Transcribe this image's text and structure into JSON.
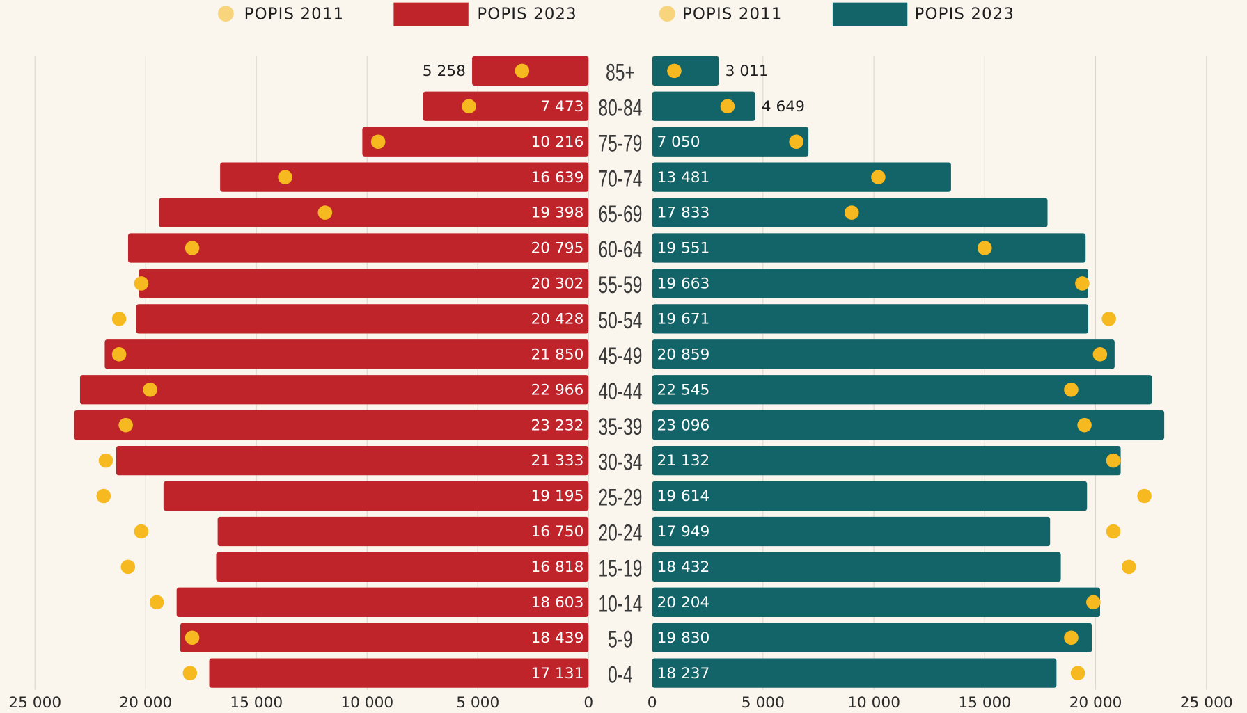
{
  "chart_data": [
    {
      "type": "pyramid",
      "categories": [
        "85+",
        "80-84",
        "75-79",
        "70-74",
        "65-69",
        "60-64",
        "55-59",
        "50-54",
        "45-49",
        "40-44",
        "35-39",
        "30-34",
        "25-29",
        "20-24",
        "15-19",
        "10-14",
        "5-9",
        "0-4"
      ],
      "xlim": [
        25000,
        0
      ],
      "xticks": [
        {
          "value": 25000,
          "label": "25 000"
        },
        {
          "value": 20000,
          "label": "20 000"
        },
        {
          "value": 15000,
          "label": "15 000"
        },
        {
          "value": 10000,
          "label": "10 000"
        },
        {
          "value": 5000,
          "label": "5 000"
        },
        0
      ],
      "grid": true,
      "series": [
        {
          "name": "POPIS 2011",
          "color": "#f6b91f",
          "mark": "dot",
          "values": [
            3000,
            5400,
            9500,
            13700,
            11900,
            17900,
            20200,
            21200,
            21200,
            19800,
            20900,
            21800,
            21900,
            20200,
            20800,
            19500,
            17900,
            18000
          ]
        },
        {
          "name": "POPIS 2023",
          "color": "#c0242b",
          "mark": "bar",
          "values": [
            5258,
            7473,
            10216,
            16639,
            19398,
            20795,
            20302,
            20428,
            21850,
            22966,
            23232,
            21333,
            19195,
            16750,
            16818,
            18603,
            18439,
            17131
          ],
          "value_labels": [
            "5 258",
            "7 473",
            "10 216",
            "16 639",
            "19 398",
            "20 795",
            "20 302",
            "20 428",
            "21 850",
            "22 966",
            "23 232",
            "21 333",
            "19 195",
            "16 750",
            "16 818",
            "18 603",
            "18 439",
            "17 131"
          ]
        }
      ]
    },
    {
      "type": "pyramid",
      "xlim": [
        0,
        25000
      ],
      "xticks": [
        0,
        {
          "value": 5000,
          "label": "5 000"
        },
        {
          "value": 10000,
          "label": "10 000"
        },
        {
          "value": 15000,
          "label": "15 000"
        },
        {
          "value": 20000,
          "label": "20 000"
        },
        {
          "value": 25000,
          "label": "25 000"
        }
      ],
      "grid": true,
      "series": [
        {
          "name": "POPIS 2011",
          "color": "#f6b91f",
          "mark": "dot",
          "values": [
            1000,
            3400,
            6500,
            10200,
            9000,
            15000,
            19400,
            20600,
            20200,
            18900,
            19500,
            20800,
            22200,
            20800,
            21500,
            19900,
            18900,
            19200
          ]
        },
        {
          "name": "POPIS 2023",
          "color": "#136469",
          "mark": "bar",
          "values": [
            3011,
            4649,
            7050,
            13481,
            17833,
            19551,
            19663,
            19671,
            20859,
            22545,
            23096,
            21132,
            19614,
            17949,
            18432,
            20204,
            19830,
            18237
          ],
          "value_labels": [
            "3 011",
            "4 649",
            "7 050",
            "13 481",
            "17 833",
            "19 551",
            "19 663",
            "19 671",
            "20 859",
            "22 545",
            "23 096",
            "21 132",
            "19 614",
            "17 949",
            "18 432",
            "20 204",
            "19 830",
            "18 237"
          ]
        }
      ]
    }
  ]
}
